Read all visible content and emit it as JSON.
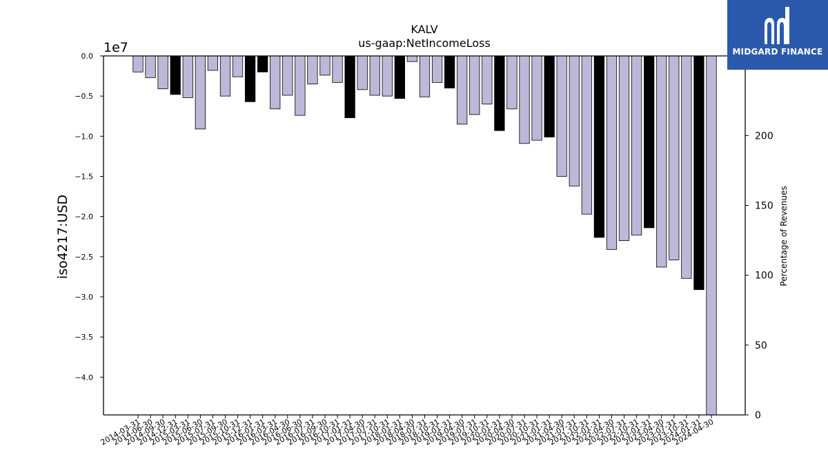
{
  "chart_data": {
    "type": "bar",
    "title": "KALV",
    "subtitle": "us-gaap:NetIncomeLoss",
    "ylabel": "iso4217:USD",
    "y2label": "Percentage of Revenues",
    "y_multiplier_label": "1e7",
    "ylim": [
      -4.47,
      0
    ],
    "y_ticks": [
      "0.0",
      "−0.5",
      "−1.0",
      "−1.5",
      "−2.0",
      "−2.5",
      "−3.0",
      "−3.5",
      "−4.0"
    ],
    "y_tick_values": [
      0,
      -0.5,
      -1.0,
      -1.5,
      -2.0,
      -2.5,
      -3.0,
      -3.5,
      -4.0
    ],
    "y2lim": [
      0,
      257
    ],
    "y2_ticks": [
      "0",
      "50",
      "100",
      "150",
      "200"
    ],
    "y2_tick_values": [
      0,
      50,
      100,
      150,
      200
    ],
    "categories": [
      "2014-03-31",
      "2014-06-30",
      "2014-09-30",
      "2014-12-31",
      "2015-03-31",
      "2015-06-30",
      "2015-07-31",
      "2015-09-30",
      "2015-10-31",
      "2015-12-31",
      "2016-01-31",
      "2016-03-31",
      "2016-04-30",
      "2016-06-30",
      "2016-07-31",
      "2016-09-30",
      "2016-10-31",
      "2017-01-31",
      "2017-04-30",
      "2017-07-31",
      "2017-10-31",
      "2018-01-31",
      "2018-04-30",
      "2018-07-31",
      "2018-10-31",
      "2019-01-31",
      "2019-04-30",
      "2019-07-31",
      "2019-10-31",
      "2020-01-31",
      "2020-04-30",
      "2020-07-31",
      "2020-10-31",
      "2021-01-31",
      "2021-04-30",
      "2021-07-31",
      "2021-10-31",
      "2022-01-31",
      "2022-04-30",
      "2022-07-31",
      "2022-10-31",
      "2023-01-31",
      "2023-04-30",
      "2023-07-31",
      "2023-10-31",
      "2024-01-31",
      "2024-04-30"
    ],
    "values": [
      -0.2,
      -0.27,
      -0.41,
      -0.48,
      -0.52,
      -0.91,
      -0.18,
      -0.5,
      -0.26,
      -0.57,
      -0.2,
      -0.66,
      -0.49,
      -0.74,
      -0.35,
      -0.24,
      -0.33,
      -0.77,
      -0.42,
      -0.49,
      -0.5,
      -0.53,
      -0.07,
      -0.51,
      -0.33,
      -0.4,
      -0.85,
      -0.73,
      -0.6,
      -0.93,
      -0.66,
      -1.09,
      -1.05,
      -1.01,
      -1.5,
      -1.62,
      -1.97,
      -2.26,
      -2.41,
      -2.3,
      -2.23,
      -2.14,
      -2.63,
      -2.54,
      -2.77,
      -2.91,
      -4.47
    ],
    "bar_is_annual": [
      false,
      false,
      false,
      true,
      false,
      false,
      false,
      false,
      false,
      true,
      true,
      false,
      false,
      false,
      false,
      false,
      false,
      true,
      false,
      false,
      false,
      true,
      false,
      false,
      false,
      true,
      false,
      false,
      false,
      true,
      false,
      false,
      false,
      true,
      false,
      false,
      false,
      true,
      false,
      false,
      false,
      true,
      false,
      false,
      false,
      true,
      false
    ],
    "colors": {
      "quarterly": "#bcb8d8",
      "annual": "#000000",
      "edge": "#000000"
    },
    "grid": false
  },
  "logo": {
    "text": "MIDGARD FINANCE",
    "bg": "#2b5aad",
    "fg": "#ffffff"
  }
}
